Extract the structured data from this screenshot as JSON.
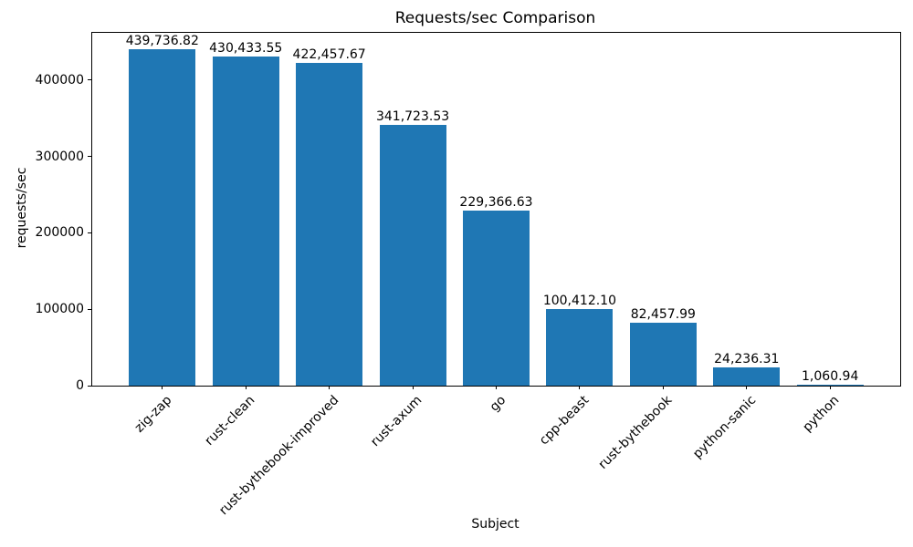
{
  "chart_data": {
    "type": "bar",
    "title": "Requests/sec Comparison",
    "xlabel": "Subject",
    "ylabel": "requests/sec",
    "categories": [
      "zig-zap",
      "rust-clean",
      "rust-bythebook-improved",
      "rust-axum",
      "go",
      "cpp-beast",
      "rust-bythebook",
      "python-sanic",
      "python"
    ],
    "values": [
      439736.82,
      430433.55,
      422457.67,
      341723.53,
      229366.63,
      100412.1,
      82457.99,
      24236.31,
      1060.94
    ],
    "value_labels": [
      "439,736.82",
      "430,433.55",
      "422,457.67",
      "341,723.53",
      "229,366.63",
      "100,412.10",
      "82,457.99",
      "24,236.31",
      "1,060.94"
    ],
    "yticks": [
      0,
      100000,
      200000,
      300000,
      400000
    ],
    "ytick_labels": [
      "0",
      "100000",
      "200000",
      "300000",
      "400000"
    ],
    "ylim": [
      0,
      461723.66
    ],
    "bar_color": "#1f77b4",
    "grid": false,
    "legend": null,
    "xtick_rotation_deg": 45
  }
}
